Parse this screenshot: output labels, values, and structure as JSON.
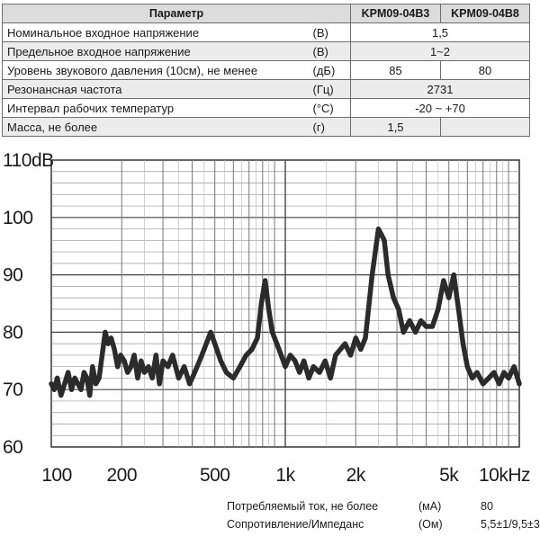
{
  "table": {
    "headers": [
      "Параметр",
      "KPM09-04B3",
      "KPM09-04B8"
    ],
    "rows": [
      {
        "name": "Номинальное входное напряжение",
        "unit": "(В)",
        "b3": "1,5",
        "b8": "",
        "shared": true
      },
      {
        "name": "Предельное входное напряжение",
        "unit": "(В)",
        "b3": "1~2",
        "b8": "",
        "shared": true
      },
      {
        "name": "Уровень звукового давления (10см), не менее",
        "unit": "(дБ)",
        "b3": "85",
        "b8": "80",
        "shared": false
      },
      {
        "name": "Резонансная частота",
        "unit": "(Гц)",
        "b3": "2731",
        "b8": "",
        "shared": true
      },
      {
        "name": "Интервал рабочих температур",
        "unit": "(°С)",
        "b3": "-20 ~ +70",
        "b8": "",
        "shared": true
      },
      {
        "name": "Масса, не более",
        "unit": "(г)",
        "b3": "1,5",
        "b8": "",
        "shared": false
      }
    ]
  },
  "chart_data": {
    "type": "line",
    "x_scale": "log",
    "xlim": [
      100,
      10000
    ],
    "ylim": [
      60,
      110
    ],
    "x_ticks": [
      {
        "value": 100,
        "label": "100"
      },
      {
        "value": 200,
        "label": "200"
      },
      {
        "value": 500,
        "label": "500"
      },
      {
        "value": 1000,
        "label": "1k"
      },
      {
        "value": 2000,
        "label": "2k"
      },
      {
        "value": 5000,
        "label": "5k"
      },
      {
        "value": 10000,
        "label": "10kHz"
      }
    ],
    "y_ticks": [
      {
        "value": 60,
        "label": "60"
      },
      {
        "value": 70,
        "label": "70"
      },
      {
        "value": 80,
        "label": "80"
      },
      {
        "value": 90,
        "label": "90"
      },
      {
        "value": 100,
        "label": "100"
      },
      {
        "value": 110,
        "label": "110dB"
      }
    ],
    "grid": true,
    "line_color": "#2b2b2b",
    "series": [
      {
        "x": [
          100,
          103,
          106,
          110,
          114,
          118,
          122,
          126,
          130,
          134,
          138,
          142,
          146,
          150,
          155,
          160,
          165,
          170,
          175,
          180,
          186,
          192,
          198,
          205,
          212,
          219,
          226,
          234,
          242,
          250,
          260,
          270,
          280,
          290,
          300,
          315,
          330,
          350,
          370,
          390,
          410,
          430,
          450,
          480,
          500,
          530,
          560,
          600,
          640,
          680,
          720,
          760,
          790,
          820,
          850,
          880,
          920,
          960,
          1000,
          1050,
          1100,
          1150,
          1200,
          1260,
          1320,
          1400,
          1480,
          1560,
          1640,
          1720,
          1800,
          1900,
          2000,
          2100,
          2200,
          2350,
          2500,
          2650,
          2750,
          2900,
          3050,
          3200,
          3400,
          3600,
          3800,
          4000,
          4250,
          4500,
          4750,
          5000,
          5250,
          5500,
          5750,
          6000,
          6300,
          6600,
          7000,
          7400,
          7800,
          8200,
          8600,
          9000,
          9500,
          10000
        ],
        "y": [
          71,
          70,
          72,
          69,
          71,
          73,
          70,
          72,
          71,
          70,
          73,
          72,
          69,
          74,
          71,
          72,
          76,
          80,
          78,
          79,
          77,
          74,
          76,
          75,
          73,
          74,
          76,
          72,
          75,
          73,
          74,
          72,
          76,
          71,
          75,
          74,
          76,
          72,
          74,
          71,
          73,
          75,
          77,
          80,
          78,
          75,
          73,
          72,
          74,
          76,
          77,
          79,
          85,
          89,
          84,
          80,
          78,
          76,
          74,
          76,
          75,
          73,
          75,
          72,
          74,
          73,
          75,
          72,
          76,
          77,
          78,
          76,
          79,
          77,
          79,
          90,
          98,
          96,
          90,
          86,
          84,
          80,
          82,
          80,
          82,
          81,
          81,
          84,
          89,
          86,
          90,
          84,
          78,
          74,
          72,
          73,
          71,
          72,
          73,
          71,
          73,
          72,
          74,
          71
        ]
      }
    ]
  },
  "notes": [
    {
      "name": "Потребляемый ток, не более",
      "unit": "(мА)",
      "value": "80"
    },
    {
      "name": "Сопротивление/Импеданс",
      "unit": "(Ом)",
      "value": "5,5±1/9,5±3"
    }
  ]
}
